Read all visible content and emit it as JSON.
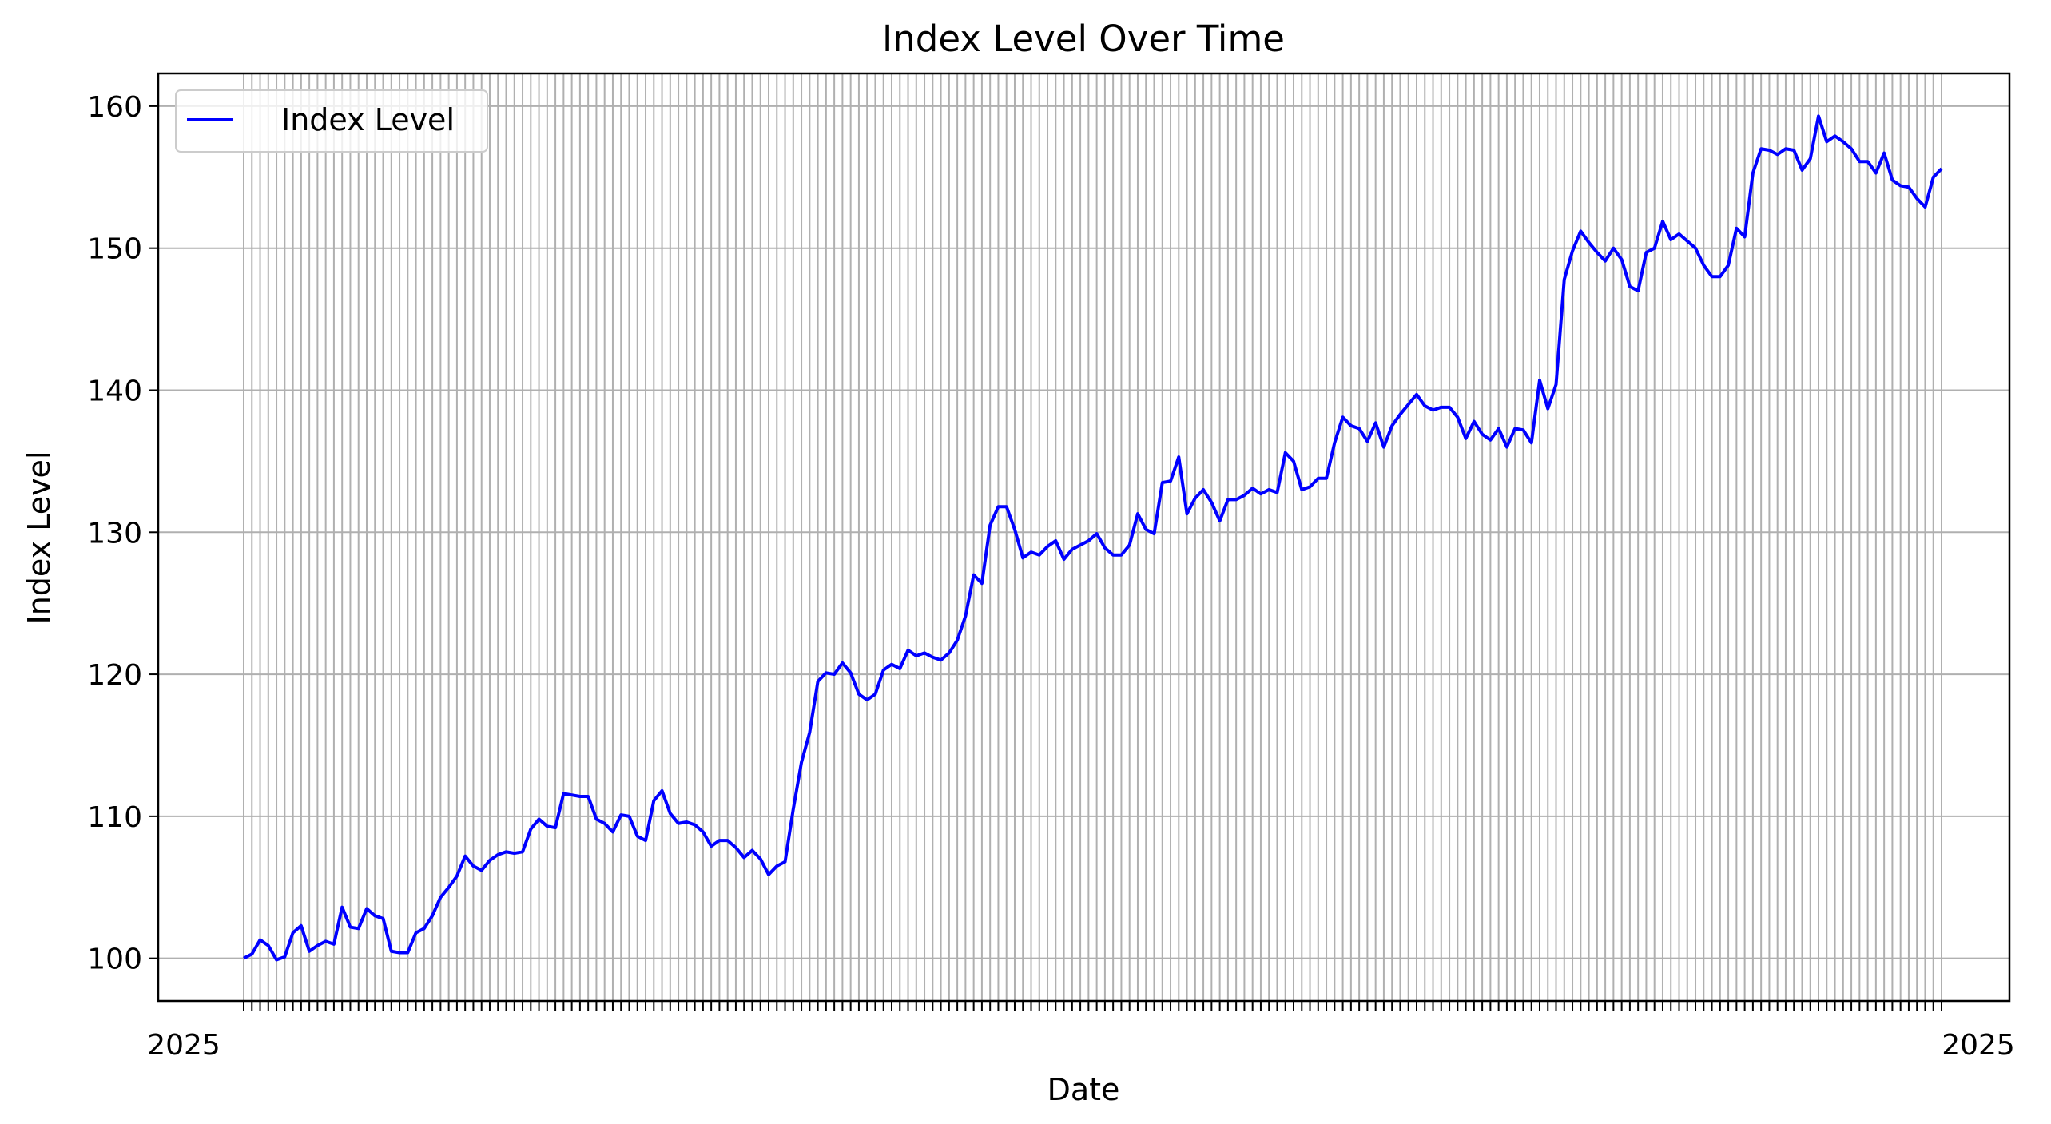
{
  "chart_data": {
    "type": "line",
    "title": "Index Level Over Time",
    "xlabel": "Date",
    "ylabel": "Index Level",
    "ylim": [
      97,
      162.3
    ],
    "yticks": [
      100,
      110,
      120,
      130,
      140,
      150,
      160
    ],
    "grid": true,
    "legend_position": "top-left",
    "x_tick_labels_overlapping": true,
    "x_tick_label_left": "2025",
    "x_tick_label_right": "2025",
    "colors": {
      "line": "#0000ff",
      "grid": "#b0b0b0"
    },
    "series": [
      {
        "name": "Index Level",
        "values": [
          100.0,
          100.3,
          101.3,
          100.9,
          99.9,
          100.1,
          101.8,
          102.3,
          100.5,
          100.9,
          101.2,
          101.0,
          103.6,
          102.2,
          102.1,
          103.5,
          103.0,
          102.8,
          100.5,
          100.4,
          100.4,
          101.8,
          102.1,
          103.0,
          104.3,
          105.0,
          105.8,
          107.2,
          106.5,
          106.2,
          106.9,
          107.3,
          107.5,
          107.4,
          107.5,
          109.1,
          109.8,
          109.3,
          109.2,
          111.6,
          111.5,
          111.4,
          111.4,
          109.8,
          109.5,
          108.9,
          110.1,
          110.0,
          108.6,
          108.3,
          111.1,
          111.8,
          110.2,
          109.5,
          109.6,
          109.4,
          108.9,
          107.9,
          108.3,
          108.3,
          107.8,
          107.1,
          107.6,
          107.0,
          105.9,
          106.5,
          106.8,
          110.5,
          113.8,
          115.9,
          119.5,
          120.1,
          120.0,
          120.8,
          120.1,
          118.6,
          118.2,
          118.6,
          120.3,
          120.7,
          120.4,
          121.7,
          121.3,
          121.5,
          121.2,
          121.0,
          121.5,
          122.4,
          124.1,
          127.0,
          126.4,
          130.5,
          131.8,
          131.8,
          130.2,
          128.2,
          128.6,
          128.4,
          129.0,
          129.4,
          128.1,
          128.8,
          129.1,
          129.4,
          129.9,
          128.9,
          128.4,
          128.4,
          129.1,
          131.3,
          130.2,
          129.9,
          133.5,
          133.6,
          135.3,
          131.3,
          132.4,
          133.0,
          132.1,
          130.8,
          132.3,
          132.3,
          132.6,
          133.1,
          132.7,
          133.0,
          132.8,
          135.6,
          135.0,
          133.0,
          133.2,
          133.8,
          133.8,
          136.3,
          138.1,
          137.5,
          137.3,
          136.4,
          137.7,
          136.0,
          137.5,
          138.3,
          139.0,
          139.7,
          138.9,
          138.6,
          138.8,
          138.8,
          138.1,
          136.6,
          137.8,
          136.9,
          136.5,
          137.3,
          136.0,
          137.3,
          137.2,
          136.3,
          140.7,
          138.7,
          140.4,
          147.8,
          149.8,
          151.2,
          150.4,
          149.7,
          149.1,
          150.0,
          149.2,
          147.3,
          147.0,
          149.7,
          150.0,
          151.9,
          150.6,
          151.0,
          150.5,
          150.0,
          148.8,
          148.0,
          148.0,
          148.8,
          151.4,
          150.8,
          155.3,
          157.0,
          156.9,
          156.6,
          157.0,
          156.9,
          155.5,
          156.3,
          159.3,
          157.5,
          157.9,
          157.5,
          157.0,
          156.1,
          156.1,
          155.3,
          156.7,
          154.8,
          154.4,
          154.3,
          153.5,
          152.9,
          155.0,
          155.6
        ]
      }
    ]
  }
}
